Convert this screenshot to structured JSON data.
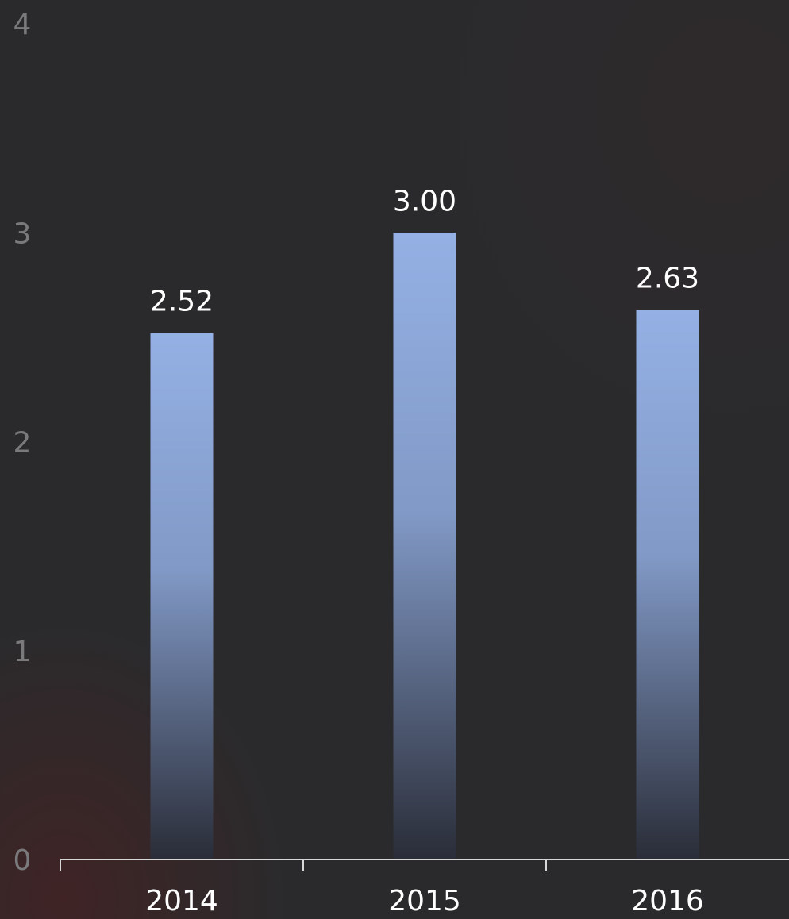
{
  "chart_data": {
    "type": "bar",
    "categories": [
      "2014",
      "2015",
      "2016"
    ],
    "values": [
      2.52,
      3.0,
      2.63
    ],
    "data_labels": [
      "2.52",
      "3.00",
      "2.63"
    ],
    "title": "",
    "xlabel": "",
    "ylabel": "",
    "ylim": [
      0,
      4
    ],
    "yticks": [
      "0",
      "1",
      "2",
      "3",
      "4"
    ],
    "grid": false,
    "legend": "none",
    "colors": {
      "bar_top": "#94b0e4",
      "bar_bottom": "#2a2d38",
      "axis": "#d8d8d8",
      "tick_label": "#7a7a7c",
      "text": "#ffffff",
      "background": "#2a2a2c"
    }
  }
}
